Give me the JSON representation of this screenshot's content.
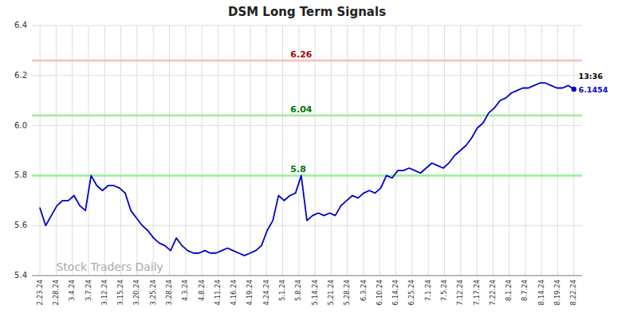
{
  "chart_data": {
    "type": "line",
    "title": "DSM Long Term Signals",
    "color": "#0000cc",
    "grid": true,
    "xlim": [
      -0.5,
      33.5
    ],
    "xticks": [
      {
        "value": 0,
        "label": "2.23.24"
      },
      {
        "value": 1,
        "label": "2.28.24"
      },
      {
        "value": 2,
        "label": "3.4.24"
      },
      {
        "value": 3,
        "label": "3.7.24"
      },
      {
        "value": 4,
        "label": "3.12.24"
      },
      {
        "value": 5,
        "label": "3.15.24"
      },
      {
        "value": 6,
        "label": "3.20.24"
      },
      {
        "value": 7,
        "label": "3.25.24"
      },
      {
        "value": 8,
        "label": "3.28.24"
      },
      {
        "value": 9,
        "label": "4.3.24"
      },
      {
        "value": 10,
        "label": "4.8.24"
      },
      {
        "value": 11,
        "label": "4.11.24"
      },
      {
        "value": 12,
        "label": "4.16.24"
      },
      {
        "value": 13,
        "label": "4.19.24"
      },
      {
        "value": 14,
        "label": "4.24.24"
      },
      {
        "value": 15,
        "label": "5.1.24"
      },
      {
        "value": 16,
        "label": "5.8.24"
      },
      {
        "value": 17,
        "label": "5.14.24"
      },
      {
        "value": 18,
        "label": "5.21.24"
      },
      {
        "value": 19,
        "label": "5.28.24"
      },
      {
        "value": 20,
        "label": "6.3.24"
      },
      {
        "value": 21,
        "label": "6.10.24"
      },
      {
        "value": 22,
        "label": "6.14.24"
      },
      {
        "value": 23,
        "label": "6.25.24"
      },
      {
        "value": 24,
        "label": "7.1.24"
      },
      {
        "value": 25,
        "label": "7.5.24"
      },
      {
        "value": 26,
        "label": "7.12.24"
      },
      {
        "value": 27,
        "label": "7.17.24"
      },
      {
        "value": 28,
        "label": "7.22.24"
      },
      {
        "value": 29,
        "label": "8.1.24"
      },
      {
        "value": 30,
        "label": "8.7.24"
      },
      {
        "value": 31,
        "label": "8.14.24"
      },
      {
        "value": 32,
        "label": "8.19.24"
      },
      {
        "value": 33,
        "label": "8.22.24"
      }
    ],
    "ylim": [
      5.4,
      6.4
    ],
    "yticks": [
      5.4,
      5.6,
      5.8,
      {
        "value": 6.0,
        "label": "6.0"
      },
      6.2,
      6.4
    ],
    "x": [
      0,
      0.3511,
      0.7021,
      1.0532,
      1.4043,
      1.7553,
      2.1064,
      2.4574,
      2.8085,
      3.1596,
      3.5106,
      3.8617,
      4.2128,
      4.5638,
      4.9149,
      5.266,
      5.617,
      5.9681,
      6.3191,
      6.6702,
      7.0213,
      7.3723,
      7.7234,
      8.0745,
      8.4255,
      8.7766,
      9.1277,
      9.4787,
      9.8298,
      10.1809,
      10.5319,
      10.883,
      11.234,
      11.5851,
      11.9362,
      12.2872,
      12.6383,
      12.9894,
      13.3404,
      13.6915,
      14.0426,
      14.3936,
      14.7447,
      15.0957,
      15.4468,
      15.7979,
      16.1489,
      16.5,
      16.8511,
      17.2021,
      17.5532,
      17.9043,
      18.2553,
      18.6064,
      18.9574,
      19.3085,
      19.6596,
      20.0106,
      20.3617,
      20.7128,
      21.0638,
      21.4149,
      21.766,
      22.117,
      22.4681,
      22.8191,
      23.1702,
      23.5213,
      23.8723,
      24.2234,
      24.5745,
      24.9255,
      25.2766,
      25.6277,
      25.9787,
      26.3298,
      26.6809,
      27.0319,
      27.383,
      27.734,
      28.0851,
      28.4362,
      28.7872,
      29.1383,
      29.4894,
      29.8404,
      30.1915,
      30.5426,
      30.8936,
      31.2447,
      31.5957,
      31.9468,
      32.2979,
      32.6489,
      33
    ],
    "values": [
      5.67,
      5.6,
      5.64,
      5.68,
      5.7,
      5.7,
      5.72,
      5.68,
      5.66,
      5.8,
      5.76,
      5.74,
      5.76,
      5.76,
      5.75,
      5.73,
      5.66,
      5.63,
      5.6,
      5.58,
      5.55,
      5.53,
      5.52,
      5.5,
      5.55,
      5.52,
      5.5,
      5.49,
      5.49,
      5.5,
      5.49,
      5.49,
      5.5,
      5.51,
      5.5,
      5.49,
      5.48,
      5.49,
      5.5,
      5.52,
      5.58,
      5.62,
      5.72,
      5.7,
      5.72,
      5.73,
      5.8,
      5.62,
      5.64,
      5.65,
      5.64,
      5.65,
      5.64,
      5.68,
      5.7,
      5.72,
      5.71,
      5.73,
      5.74,
      5.73,
      5.75,
      5.8,
      5.79,
      5.82,
      5.82,
      5.83,
      5.82,
      5.81,
      5.83,
      5.85,
      5.84,
      5.83,
      5.85,
      5.88,
      5.9,
      5.92,
      5.95,
      5.99,
      6.01,
      6.05,
      6.07,
      6.1,
      6.11,
      6.13,
      6.14,
      6.15,
      6.15,
      6.16,
      6.17,
      6.17,
      6.16,
      6.15,
      6.15,
      6.16,
      6.1454
    ],
    "hlines": [
      {
        "y": 6.26,
        "label": "6.26",
        "color": "#ffbbbb",
        "label_color": "#aa0000"
      },
      {
        "y": 6.04,
        "label": "6.04",
        "color": "#99ee99",
        "label_color": "#007700"
      },
      {
        "y": 5.8,
        "label": "5.8",
        "color": "#99ee99",
        "label_color": "#007700"
      }
    ],
    "annotations": [
      {
        "text": "13:36",
        "color": "#000000"
      },
      {
        "text": "6.1454",
        "color": "#0000cc"
      }
    ],
    "watermark": {
      "text": "Stock Traders Daily",
      "color": "#aaaaaa"
    }
  }
}
